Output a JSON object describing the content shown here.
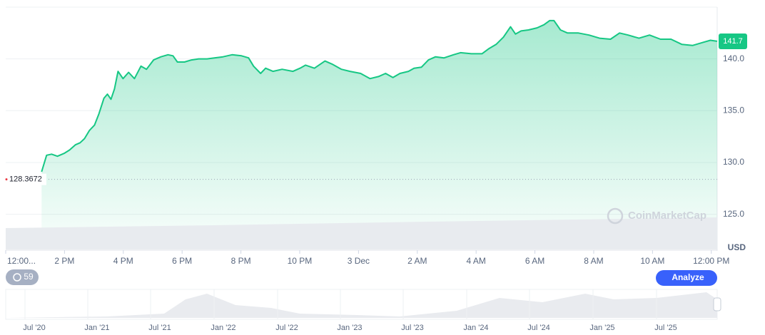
{
  "chart_data": {
    "type": "area",
    "color": "#16c784",
    "x": [
      1.22,
      1.39,
      1.56,
      1.76,
      2.0,
      2.17,
      2.37,
      2.53,
      2.68,
      2.85,
      3.02,
      3.17,
      3.34,
      3.46,
      3.58,
      3.7,
      3.82,
      3.99,
      4.18,
      4.38,
      4.6,
      4.79,
      5.03,
      5.28,
      5.52,
      5.69,
      5.84,
      6.08,
      6.32,
      6.56,
      6.85,
      7.1,
      7.39,
      7.7,
      8.02,
      8.26,
      8.43,
      8.67,
      8.84,
      9.09,
      9.4,
      9.77,
      10.01,
      10.2,
      10.5,
      10.86,
      11.1,
      11.42,
      11.71,
      12.07,
      12.39,
      12.68,
      12.92,
      13.17,
      13.41,
      13.7,
      13.89,
      14.14,
      14.38,
      14.62,
      14.91,
      15.23,
      15.47,
      15.84,
      16.2,
      16.44,
      16.68,
      16.93,
      17.17,
      17.34,
      17.53,
      17.78,
      18.07,
      18.31,
      18.5,
      18.65,
      18.87,
      19.11,
      19.48,
      19.84,
      20.2,
      20.57,
      20.88,
      21.17,
      21.54,
      21.9,
      22.27,
      22.63,
      23.0,
      23.36,
      23.72,
      23.97,
      24.2
    ],
    "values": [
      129.1,
      130.7,
      130.8,
      130.6,
      130.9,
      131.2,
      131.7,
      131.9,
      132.3,
      133.1,
      133.6,
      134.7,
      136.2,
      136.6,
      136.1,
      137.1,
      138.8,
      138.1,
      138.7,
      138.1,
      139.3,
      139.0,
      139.9,
      140.2,
      140.4,
      140.3,
      139.7,
      139.7,
      139.9,
      140.0,
      140.0,
      140.1,
      140.2,
      140.4,
      140.3,
      140.1,
      139.3,
      138.6,
      139.1,
      138.8,
      139.0,
      138.8,
      139.1,
      139.4,
      139.1,
      139.8,
      139.5,
      139.0,
      138.8,
      138.6,
      138.1,
      138.3,
      138.6,
      138.2,
      138.6,
      138.8,
      139.1,
      139.2,
      139.9,
      140.2,
      140.1,
      140.4,
      140.6,
      140.5,
      140.5,
      141.0,
      141.4,
      142.1,
      143.1,
      142.4,
      142.7,
      142.8,
      143.0,
      143.3,
      143.7,
      143.7,
      142.8,
      142.5,
      142.5,
      142.3,
      142.0,
      141.9,
      142.5,
      142.3,
      142.0,
      142.3,
      141.9,
      141.9,
      141.4,
      141.3,
      141.6,
      141.8,
      141.7
    ],
    "xlim": [
      0,
      24.2
    ],
    "xticks": [
      {
        "value": 0,
        "label": "12:00..."
      },
      {
        "value": 2,
        "label": "2 PM"
      },
      {
        "value": 4,
        "label": "4 PM"
      },
      {
        "value": 6,
        "label": "6 PM"
      },
      {
        "value": 8,
        "label": "8 PM"
      },
      {
        "value": 10,
        "label": "10 PM"
      },
      {
        "value": 12,
        "label": "3 Dec"
      },
      {
        "value": 14,
        "label": "2 AM"
      },
      {
        "value": 16,
        "label": "4 AM"
      },
      {
        "value": 18,
        "label": "6 AM"
      },
      {
        "value": 20,
        "label": "8 AM"
      },
      {
        "value": 22,
        "label": "10 AM"
      },
      {
        "value": 24,
        "label": "12:00 PM"
      }
    ],
    "ylim": [
      121.6,
      145
    ],
    "yticks": [
      {
        "value": 125,
        "label": "125.0"
      },
      {
        "value": 130,
        "label": "130.0"
      },
      {
        "value": 135,
        "label": "135.0"
      },
      {
        "value": 140,
        "label": "140.0"
      }
    ],
    "grid": true,
    "reference": 128.3672,
    "last_price": 141.7,
    "currency": "USD",
    "watermark": "CoinMarketCap",
    "history_badge": "59",
    "button": "Analyze",
    "navigator_labels": [
      "Jul '20",
      "Jan '21",
      "Jul '21",
      "Jan '22",
      "Jul '22",
      "Jan '23",
      "Jul '23",
      "Jan '24",
      "Jul '24",
      "Jan '25",
      "Jul '25"
    ]
  }
}
